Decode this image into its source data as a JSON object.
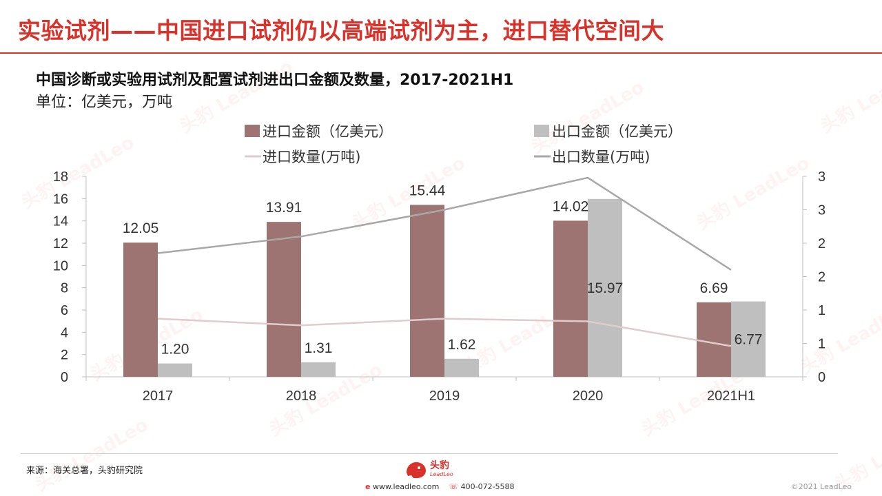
{
  "title": "实验试剂——中国进口试剂仍以高端试剂为主，进口替代空间大",
  "subtitle": "中国诊断或实验用试剂及配置试剂进出口金额及数量，2017-2021H1",
  "unit": "单位：亿美元，万吨",
  "source": "来源：海关总署，头豹研究院",
  "logo": {
    "name": "头豹",
    "sub": "LeadLeo"
  },
  "contact": {
    "website": "www.leadleo.com",
    "phone": "400-072-5588"
  },
  "copyright": "©2021 LeadLeo",
  "watermark": "头豹 LeadLeo",
  "colors": {
    "title": "#d9322a",
    "import_value": "#9e7472",
    "export_value": "#bfbfbf",
    "import_qty": "#e0cccc",
    "export_qty": "#a8a8a8"
  },
  "chart_data": {
    "type": "bar",
    "categories": [
      "2017",
      "2018",
      "2019",
      "2020",
      "2021H1"
    ],
    "series": [
      {
        "name": "进口金额（亿美元）",
        "type": "bar",
        "axis": "left",
        "values": [
          12.05,
          13.91,
          15.44,
          14.02,
          6.69
        ]
      },
      {
        "name": "出口金额（亿美元）",
        "type": "bar",
        "axis": "left",
        "values": [
          1.2,
          1.31,
          1.62,
          15.97,
          6.77
        ]
      },
      {
        "name": "进口数量(万吨)",
        "type": "line",
        "axis": "right",
        "values": [
          0.87,
          0.77,
          0.87,
          0.83,
          0.46
        ]
      },
      {
        "name": "出口数量(万吨)",
        "type": "line",
        "axis": "right",
        "values": [
          1.85,
          2.1,
          2.5,
          2.98,
          1.6
        ]
      }
    ],
    "data_labels_left": [
      "12.05",
      "13.91",
      "15.44",
      "14.02",
      "6.69"
    ],
    "data_labels_right": [
      "1.20",
      "1.31",
      "1.62",
      "15.97",
      "6.77"
    ],
    "y_left": {
      "range": [
        0,
        18
      ],
      "ticks": [
        "0",
        "2",
        "4",
        "6",
        "8",
        "10",
        "12",
        "14",
        "16",
        "18"
      ]
    },
    "y_right": {
      "range": [
        0,
        3
      ],
      "ticks": [
        "0",
        "1",
        "1",
        "2",
        "2",
        "3",
        "3"
      ]
    },
    "legend_position": "top",
    "grid": false
  }
}
